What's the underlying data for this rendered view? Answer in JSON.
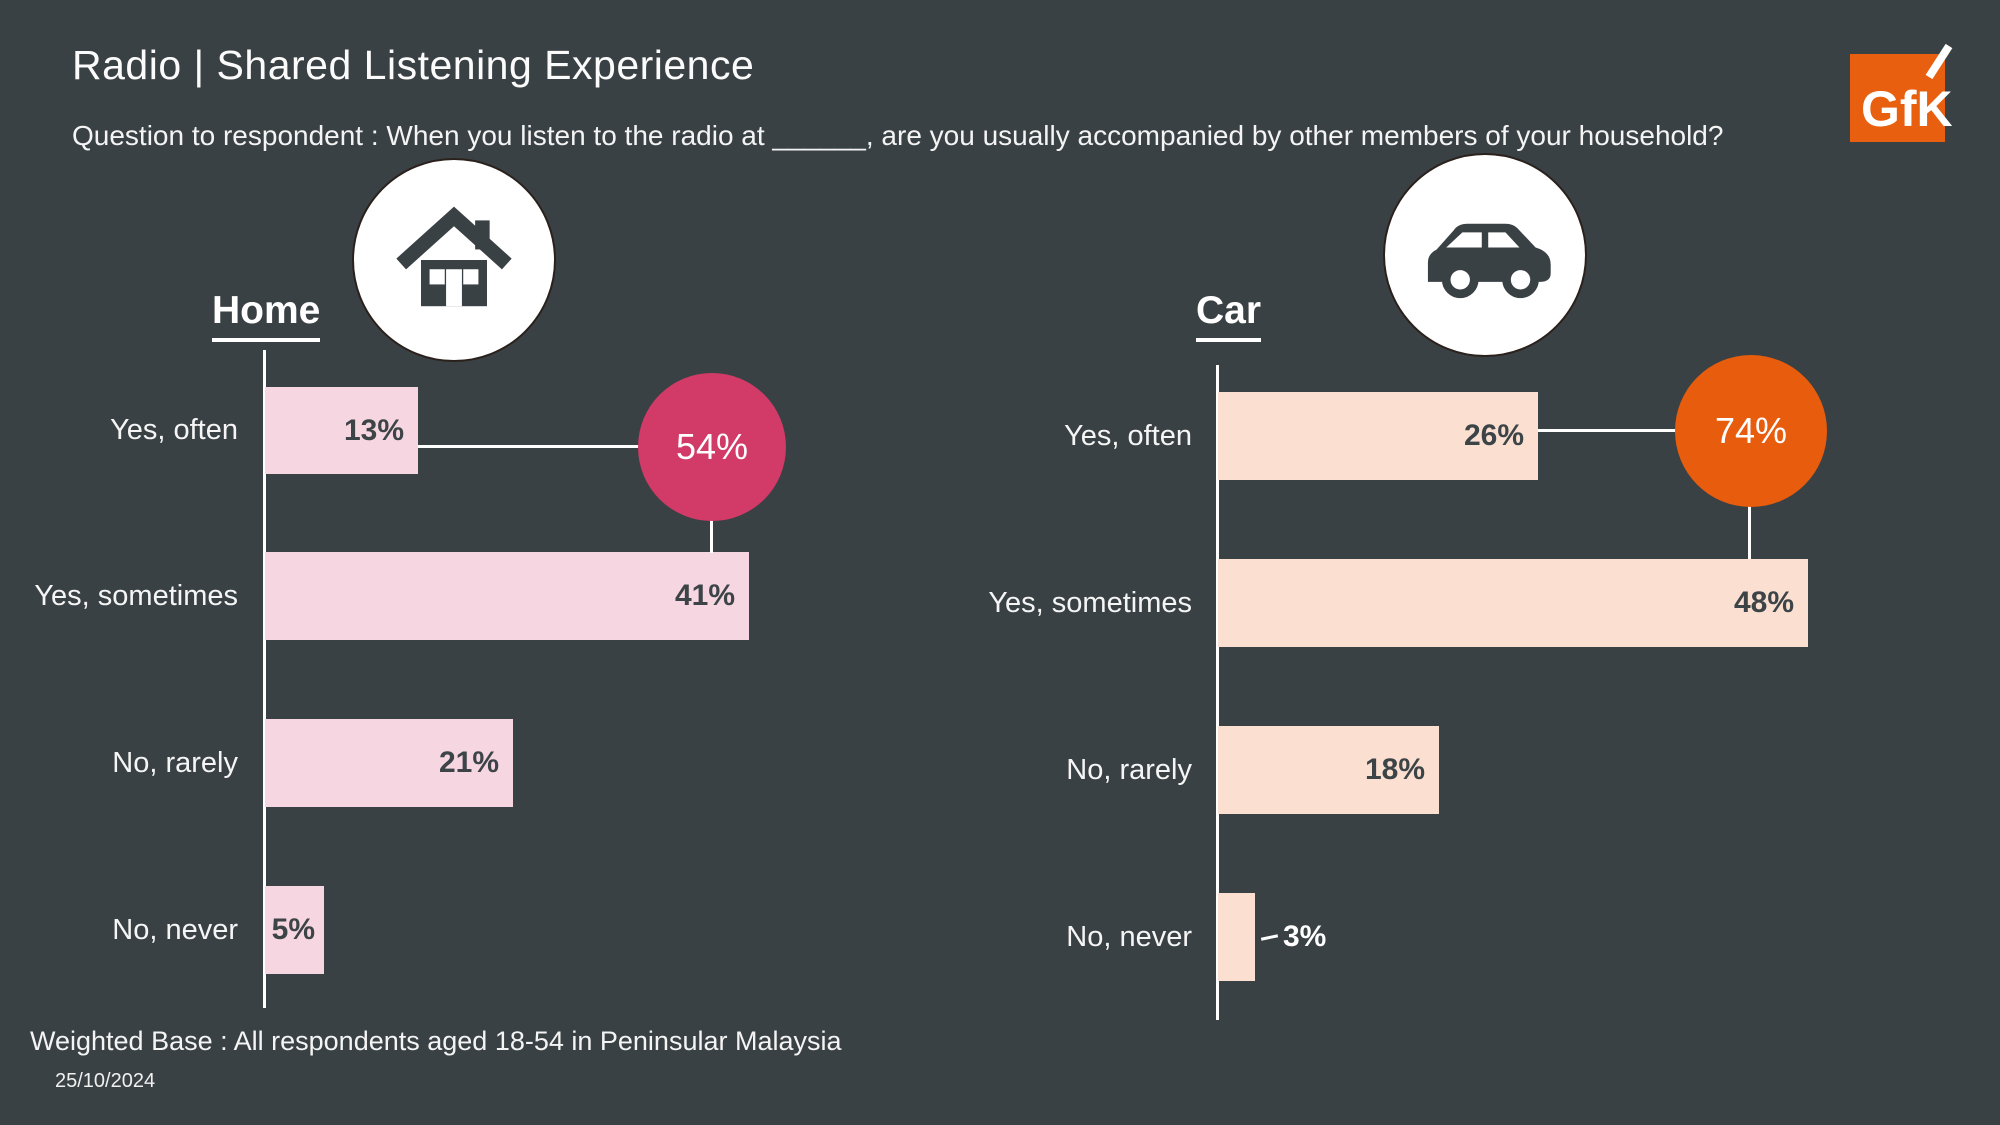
{
  "page": {
    "title": "Radio | Shared Listening Experience",
    "question": "Question to respondent : When you listen to the radio at ______, are you usually accompanied by other members of your household?",
    "footer": "Weighted Base : All respondents aged 18-54 in Peninsular Malaysia",
    "date": "25/10/2024",
    "background_color": "#3a4144"
  },
  "logo": {
    "text": "GfK",
    "color": "#e8600f"
  },
  "chart_data": [
    {
      "type": "bar",
      "orientation": "horizontal",
      "title": "Home",
      "icon": "house-icon",
      "categories": [
        "Yes, often",
        "Yes, sometimes",
        "No, rarely",
        "No, never"
      ],
      "values": [
        13,
        41,
        21,
        5
      ],
      "labels": [
        "13%",
        "41%",
        "21%",
        "5%"
      ],
      "yes_total_label": "54%",
      "units": "%",
      "xlim": [
        0,
        50
      ],
      "grid": false,
      "bar_color": "#f6d6e0",
      "highlight_color": "#d23a67"
    },
    {
      "type": "bar",
      "orientation": "horizontal",
      "title": "Car",
      "icon": "car-icon",
      "categories": [
        "Yes, often",
        "Yes, sometimes",
        "No, rarely",
        "No, never"
      ],
      "values": [
        26,
        48,
        18,
        3
      ],
      "labels": [
        "26%",
        "48%",
        "18%",
        "3%"
      ],
      "yes_total_label": "74%",
      "units": "%",
      "xlim": [
        0,
        50
      ],
      "grid": false,
      "bar_color": "#fbe0d2",
      "highlight_color": "#e75c0d"
    }
  ]
}
